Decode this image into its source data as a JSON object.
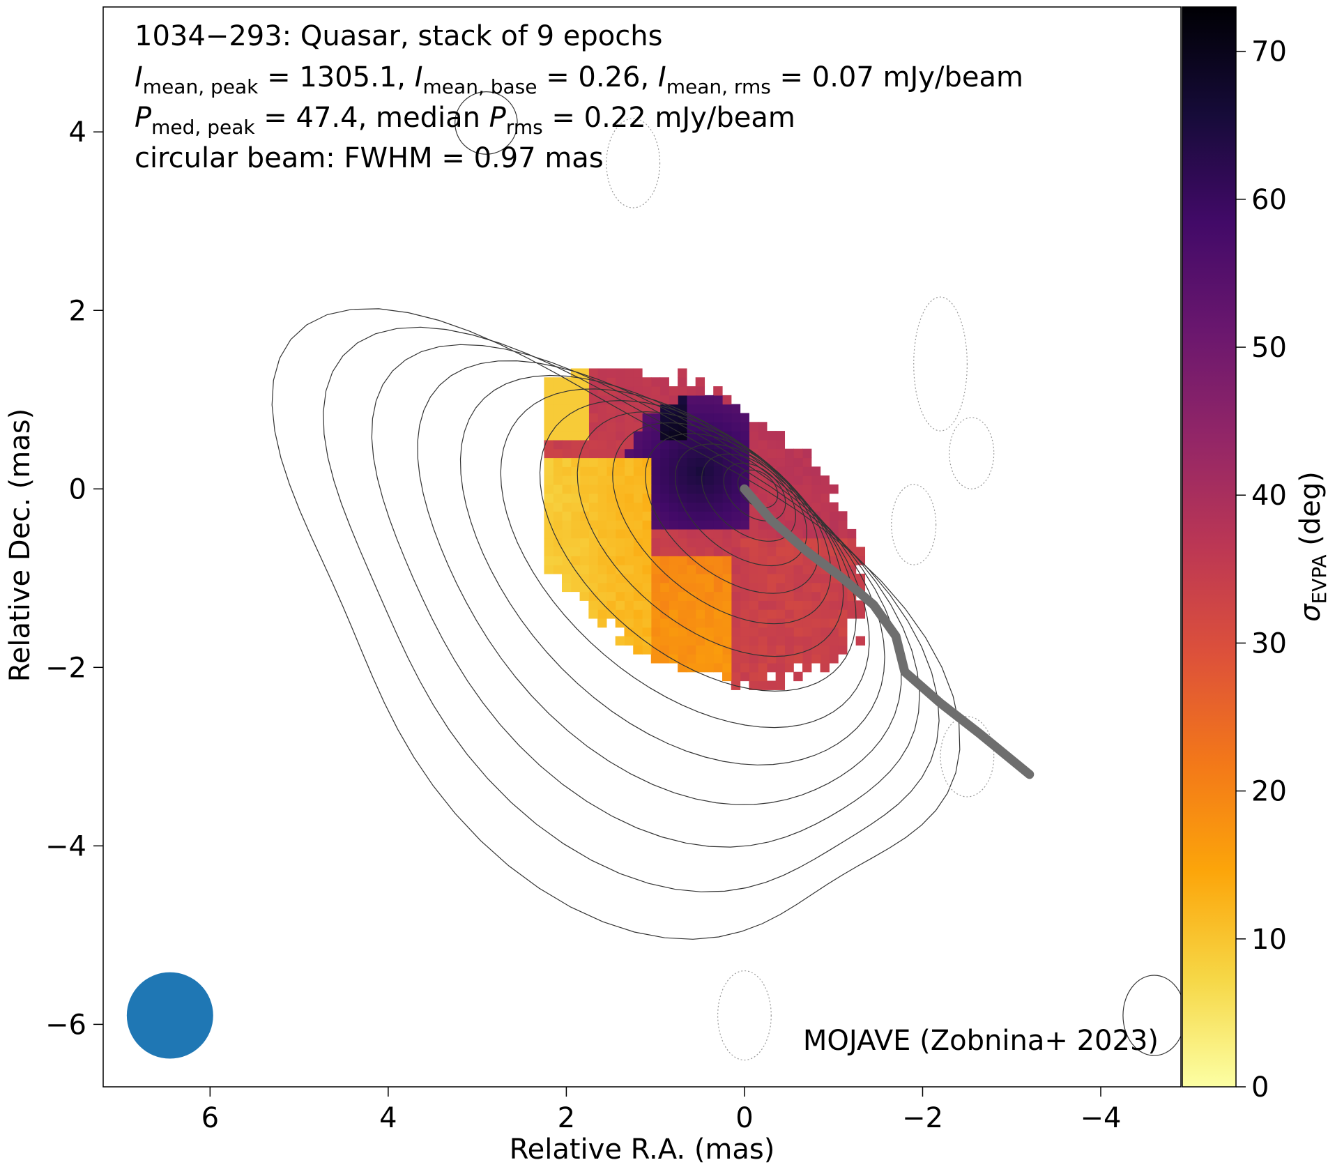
{
  "chart_data": {
    "type": "heatmap",
    "title": "1034−293: Quasar, stack of 9 epochs",
    "annotation_lines": [
      {
        "segments": [
          {
            "t": "I",
            "italic": true
          },
          {
            "t": "mean, peak",
            "sub": true
          },
          {
            "t": " = 1305.1, "
          },
          {
            "t": "I",
            "italic": true
          },
          {
            "t": "mean, base",
            "sub": true
          },
          {
            "t": " = 0.26, "
          },
          {
            "t": "I",
            "italic": true
          },
          {
            "t": "mean, rms",
            "sub": true
          },
          {
            "t": " = 0.07 mJy/beam"
          }
        ]
      },
      {
        "segments": [
          {
            "t": "P",
            "italic": true
          },
          {
            "t": "med, peak",
            "sub": true
          },
          {
            "t": " = 47.4, median "
          },
          {
            "t": "P",
            "italic": true
          },
          {
            "t": "rms",
            "sub": true
          },
          {
            "t": " = 0.22 mJy/beam"
          }
        ]
      },
      {
        "segments": [
          {
            "t": "circular beam: FWHM = 0.97 mas"
          }
        ]
      }
    ],
    "credit": "MOJAVE (Zobnina+ 2023)",
    "xlabel": "Relative R.A. (mas)",
    "ylabel": "Relative Dec. (mas)",
    "xlim": [
      7.2,
      -4.9
    ],
    "ylim": [
      -6.7,
      5.4
    ],
    "xticks": [
      6,
      4,
      2,
      0,
      -2,
      -4
    ],
    "xtick_labels": [
      "6",
      "4",
      "2",
      "0",
      "−2",
      "−4"
    ],
    "yticks": [
      4,
      2,
      0,
      -2,
      -4,
      -6
    ],
    "ytick_labels": [
      "4",
      "2",
      "0",
      "−2",
      "−4",
      "−6"
    ],
    "colorbar": {
      "label_main": "σ",
      "label_sub": "EVPA",
      "label_unit": " (deg)",
      "range": [
        0,
        73
      ],
      "ticks": [
        0,
        10,
        20,
        30,
        40,
        50,
        60,
        70
      ],
      "tick_labels": [
        "0",
        "10",
        "20",
        "30",
        "40",
        "50",
        "60",
        "70"
      ],
      "colormap": "inferno_r",
      "stops": [
        "#fcffa4",
        "#f6d746",
        "#fca50a",
        "#f37819",
        "#dd513a",
        "#bc3754",
        "#932667",
        "#6a176e",
        "#420a68",
        "#160b39",
        "#000004"
      ]
    },
    "beam": {
      "fwhm_mas": 0.97,
      "center": [
        6.45,
        -5.9
      ],
      "color": "#1f77b4"
    },
    "ridgeline": {
      "color": "#6e6e6e",
      "x": [
        0.0,
        -0.3,
        -0.7,
        -1.1,
        -1.45,
        -1.7,
        -1.8,
        -2.2,
        -2.65,
        -3.2
      ],
      "y": [
        0.0,
        -0.35,
        -0.7,
        -1.0,
        -1.3,
        -1.65,
        -2.05,
        -2.4,
        -2.75,
        -3.2
      ]
    },
    "contours": {
      "center": [
        -0.15,
        0.0
      ],
      "levels": 14,
      "note": "total intensity contours; dotted lowest level = negative"
    },
    "map": {
      "pixel_mas": 0.1,
      "regions": [
        {
          "name": "low-variability yellow region",
          "value": 8
        },
        {
          "name": "core region",
          "value": 35
        },
        {
          "name": "northern purple region",
          "value": 55
        },
        {
          "name": "southern orange region",
          "value": 18
        }
      ]
    }
  }
}
